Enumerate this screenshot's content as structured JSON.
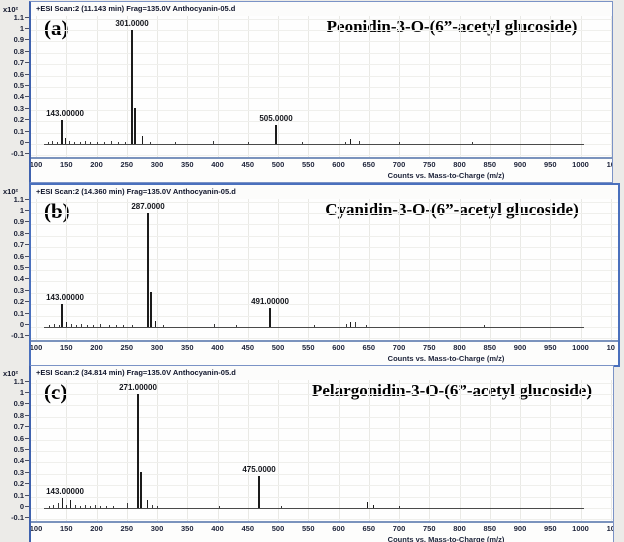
{
  "figure": {
    "y_scale_label": "x10²",
    "x_axis_title": "Counts vs. Mass-to-Charge (m/z)",
    "y_ticks": [
      "1.1",
      "1",
      "0.9",
      "0.8",
      "0.7",
      "0.6",
      "0.5",
      "0.4",
      "0.3",
      "0.2",
      "0.1",
      "0",
      "-0.1"
    ],
    "x_tick_start": 100,
    "x_tick_step": 50,
    "x_tick_end": 1000,
    "x_last_tick": {
      "value": 1050,
      "label": "10"
    },
    "colors": {
      "frame_border": "#7b93c6",
      "selected_border": "#4a70bd",
      "peak": "#1b1b1b",
      "grid": "#e9e9e5",
      "background": "#ecebe8",
      "plot_background": "#fefefe",
      "axis_band": "#7b93bd"
    }
  },
  "chart_data": [
    {
      "type": "bar",
      "subtype": "esi-mass-spectrum",
      "panel": "(a)",
      "header": "+ESI Scan:2 (11.143 min) Frag=135.0V Anthocyanin-05.d",
      "title": "Peonidin-3-O-(6”-acetyl glucoside)",
      "xlabel": "Counts vs. Mass-to-Charge (m/z)",
      "ylabel": "x10²",
      "xlim": [
        100,
        1050
      ],
      "ylim": [
        -0.1,
        1.1
      ],
      "labeled_peaks_mz": [
        143.0,
        301.0,
        505.0
      ],
      "labeled_peaks_intensity": [
        0.21,
        1.0,
        0.17
      ],
      "peaks": [
        {
          "mz": 143.0,
          "label": "143.00000",
          "pos": 143,
          "h": 0.21
        },
        {
          "pos": 148,
          "h": 0.05
        },
        {
          "mz": 301.0,
          "label": "301.0000",
          "pos": 258,
          "h": 1.0
        },
        {
          "pos": 263,
          "h": 0.32
        },
        {
          "pos": 276,
          "h": 0.07
        },
        {
          "mz": 505.0,
          "label": "505.0000",
          "pos": 497,
          "h": 0.17
        },
        {
          "pos": 620,
          "h": 0.04
        }
      ],
      "noise": [
        [
          120,
          0.02
        ],
        [
          126,
          0.03
        ],
        [
          134,
          0.02
        ],
        [
          155,
          0.03
        ],
        [
          163,
          0.02
        ],
        [
          172,
          0.02
        ],
        [
          181,
          0.03
        ],
        [
          190,
          0.02
        ],
        [
          200,
          0.02
        ],
        [
          212,
          0.02
        ],
        [
          224,
          0.03
        ],
        [
          236,
          0.02
        ],
        [
          247,
          0.02
        ],
        [
          288,
          0.02
        ],
        [
          330,
          0.02
        ],
        [
          392,
          0.03
        ],
        [
          450,
          0.015
        ],
        [
          540,
          0.02
        ],
        [
          610,
          0.02
        ],
        [
          634,
          0.03
        ],
        [
          700,
          0.015
        ],
        [
          820,
          0.015
        ]
      ]
    },
    {
      "type": "bar",
      "subtype": "esi-mass-spectrum",
      "panel": "(b)",
      "header": "+ESI Scan:2 (14.360 min) Frag=135.0V Anthocyanin-05.d",
      "title": "Cyanidin-3-O-(6”-acetyl glucoside)",
      "xlabel": "Counts vs. Mass-to-Charge (m/z)",
      "ylabel": "x10²",
      "xlim": [
        100,
        1050
      ],
      "ylim": [
        -0.1,
        1.1
      ],
      "labeled_peaks_mz": [
        143.0,
        287.0,
        491.0
      ],
      "labeled_peaks_intensity": [
        0.2,
        1.0,
        0.17
      ],
      "peaks": [
        {
          "mz": 143.0,
          "label": "143.00000",
          "pos": 143,
          "h": 0.2
        },
        {
          "pos": 150,
          "h": 0.04
        },
        {
          "mz": 287.0,
          "label": "287.0000",
          "pos": 285,
          "h": 1.0
        },
        {
          "pos": 290,
          "h": 0.31
        },
        {
          "pos": 298,
          "h": 0.05
        },
        {
          "mz": 491.0,
          "label": "491.00000",
          "pos": 487,
          "h": 0.17
        },
        {
          "pos": 620,
          "h": 0.04
        }
      ],
      "noise": [
        [
          122,
          0.02
        ],
        [
          130,
          0.03
        ],
        [
          138,
          0.02
        ],
        [
          158,
          0.03
        ],
        [
          166,
          0.02
        ],
        [
          175,
          0.03
        ],
        [
          184,
          0.02
        ],
        [
          194,
          0.02
        ],
        [
          206,
          0.03
        ],
        [
          220,
          0.02
        ],
        [
          232,
          0.02
        ],
        [
          244,
          0.02
        ],
        [
          258,
          0.02
        ],
        [
          310,
          0.02
        ],
        [
          395,
          0.03
        ],
        [
          430,
          0.02
        ],
        [
          560,
          0.02
        ],
        [
          612,
          0.03
        ],
        [
          628,
          0.04
        ],
        [
          645,
          0.02
        ],
        [
          840,
          0.015
        ]
      ]
    },
    {
      "type": "bar",
      "subtype": "esi-mass-spectrum",
      "panel": "(c)",
      "header": "+ESI Scan:2 (34.814 min) Frag=135.0V Anthocyanin-05.d",
      "title": "Pelargonidin-3-O-(6”-acetyl glucoside)",
      "xlabel": "Counts vs. Mass-to-Charge (m/z)",
      "ylabel": "x10²",
      "xlim": [
        100,
        1050
      ],
      "ylim": [
        -0.1,
        1.1
      ],
      "labeled_peaks_mz": [
        143.0,
        271.0,
        475.0
      ],
      "labeled_peaks_intensity": [
        0.09,
        1.0,
        0.28
      ],
      "peaks": [
        {
          "mz": 143.0,
          "label": "143.00000",
          "pos": 143,
          "h": 0.09
        },
        {
          "pos": 157,
          "h": 0.07
        },
        {
          "mz": 271.0,
          "label": "271.00000",
          "pos": 268,
          "h": 1.0
        },
        {
          "pos": 273,
          "h": 0.32
        },
        {
          "pos": 284,
          "h": 0.07
        },
        {
          "mz": 475.0,
          "label": "475.0000",
          "pos": 468,
          "h": 0.28
        },
        {
          "pos": 648,
          "h": 0.05
        },
        {
          "pos": 658,
          "h": 0.03
        }
      ],
      "noise": [
        [
          121,
          0.02
        ],
        [
          128,
          0.03
        ],
        [
          136,
          0.04
        ],
        [
          150,
          0.03
        ],
        [
          165,
          0.03
        ],
        [
          173,
          0.02
        ],
        [
          181,
          0.03
        ],
        [
          189,
          0.02
        ],
        [
          197,
          0.03
        ],
        [
          206,
          0.02
        ],
        [
          216,
          0.02
        ],
        [
          228,
          0.02
        ],
        [
          250,
          0.04
        ],
        [
          292,
          0.03
        ],
        [
          300,
          0.02
        ],
        [
          402,
          0.02
        ],
        [
          505,
          0.02
        ],
        [
          700,
          0.015
        ]
      ]
    }
  ]
}
